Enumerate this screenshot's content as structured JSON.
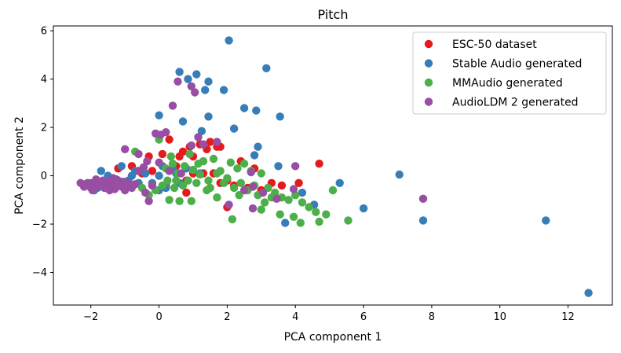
{
  "chart_data": {
    "type": "scatter",
    "title": "Pitch",
    "xlabel": "PCA component 1",
    "ylabel": "PCA component 2",
    "xlim": [
      -3.1,
      13.3
    ],
    "ylim": [
      -5.35,
      6.2
    ],
    "xticks": [
      -2,
      0,
      2,
      4,
      6,
      8,
      10,
      12
    ],
    "yticks": [
      -4,
      -2,
      0,
      2,
      4,
      6
    ],
    "xtick_labels": [
      "−2",
      "0",
      "2",
      "4",
      "6",
      "8",
      "10",
      "12"
    ],
    "ytick_labels": [
      "−4",
      "−2",
      "0",
      "2",
      "4",
      "6"
    ],
    "legend_position": "top-right",
    "series": [
      {
        "name": "ESC-50 dataset",
        "color": "#e41a1c",
        "points": [
          [
            -1.2,
            0.3
          ],
          [
            -0.8,
            0.4
          ],
          [
            -0.6,
            0.2
          ],
          [
            -0.3,
            0.8
          ],
          [
            -0.2,
            0.2
          ],
          [
            0.1,
            0.9
          ],
          [
            0.3,
            1.5
          ],
          [
            0.6,
            0.8
          ],
          [
            0.7,
            1.0
          ],
          [
            0.9,
            1.2
          ],
          [
            1.0,
            0.8
          ],
          [
            1.2,
            1.3
          ],
          [
            1.4,
            1.1
          ],
          [
            1.5,
            1.4
          ],
          [
            1.7,
            1.2
          ],
          [
            1.8,
            1.2
          ],
          [
            0.5,
            0.4
          ],
          [
            0.8,
            -0.2
          ],
          [
            1.0,
            0.1
          ],
          [
            1.3,
            0.1
          ],
          [
            1.6,
            0.1
          ],
          [
            1.8,
            -0.3
          ],
          [
            2.0,
            -0.2
          ],
          [
            2.2,
            -0.4
          ],
          [
            2.4,
            0.6
          ],
          [
            2.6,
            -0.5
          ],
          [
            2.8,
            0.3
          ],
          [
            3.0,
            -0.6
          ],
          [
            3.3,
            -0.3
          ],
          [
            3.6,
            -0.4
          ],
          [
            4.1,
            -0.3
          ],
          [
            4.7,
            0.5
          ],
          [
            2.0,
            -1.3
          ],
          [
            0.8,
            -0.7
          ],
          [
            0.2,
            -0.4
          ],
          [
            -0.5,
            0.1
          ]
        ]
      },
      {
        "name": "Stable Audio generated",
        "color": "#377eb8",
        "points": [
          [
            2.05,
            5.6
          ],
          [
            3.15,
            4.45
          ],
          [
            0.6,
            4.3
          ],
          [
            1.1,
            4.2
          ],
          [
            0.85,
            4.0
          ],
          [
            1.45,
            3.9
          ],
          [
            1.35,
            3.55
          ],
          [
            1.9,
            3.55
          ],
          [
            2.5,
            2.8
          ],
          [
            2.85,
            2.7
          ],
          [
            0.0,
            2.5
          ],
          [
            0.7,
            2.25
          ],
          [
            3.55,
            2.45
          ],
          [
            1.45,
            2.45
          ],
          [
            2.2,
            1.95
          ],
          [
            1.25,
            1.85
          ],
          [
            2.9,
            1.2
          ],
          [
            2.8,
            0.85
          ],
          [
            3.5,
            0.4
          ],
          [
            5.3,
            -0.3
          ],
          [
            7.05,
            0.05
          ],
          [
            4.2,
            -0.7
          ],
          [
            4.55,
            -1.2
          ],
          [
            6.0,
            -1.35
          ],
          [
            7.75,
            -1.85
          ],
          [
            3.7,
            -1.95
          ],
          [
            11.35,
            -1.85
          ],
          [
            12.6,
            -4.85
          ],
          [
            -2.2,
            -0.4
          ],
          [
            -2.0,
            -0.3
          ],
          [
            -1.8,
            -0.5
          ],
          [
            -1.6,
            -0.4
          ],
          [
            -1.4,
            -0.3
          ],
          [
            -1.2,
            -0.2
          ],
          [
            -1.0,
            -0.4
          ],
          [
            -0.8,
            0.0
          ],
          [
            -0.6,
            -0.3
          ],
          [
            -0.4,
            0.1
          ],
          [
            -0.2,
            -0.3
          ],
          [
            0.0,
            0.0
          ],
          [
            0.2,
            -0.5
          ],
          [
            0.4,
            0.3
          ],
          [
            0.0,
            -0.6
          ],
          [
            -1.5,
            0.0
          ],
          [
            -1.7,
            0.2
          ],
          [
            -1.1,
            0.4
          ],
          [
            -0.7,
            0.2
          ],
          [
            0.5,
            0.1
          ],
          [
            0.8,
            0.3
          ],
          [
            1.2,
            0.1
          ],
          [
            -1.9,
            -0.6
          ],
          [
            -1.3,
            -0.5
          ],
          [
            -0.9,
            -0.2
          ],
          [
            0.1,
            0.4
          ],
          [
            0.6,
            -0.3
          ]
        ]
      },
      {
        "name": "MMAudio generated",
        "color": "#4daf4a",
        "points": [
          [
            -0.7,
            1.0
          ],
          [
            0.0,
            1.5
          ],
          [
            0.35,
            0.8
          ],
          [
            0.9,
            0.9
          ],
          [
            1.3,
            0.6
          ],
          [
            1.6,
            0.7
          ],
          [
            2.1,
            0.55
          ],
          [
            2.5,
            0.5
          ],
          [
            2.3,
            0.3
          ],
          [
            2.7,
            0.2
          ],
          [
            3.0,
            0.1
          ],
          [
            0.2,
            0.3
          ],
          [
            0.5,
            -0.2
          ],
          [
            0.7,
            -0.4
          ],
          [
            1.1,
            -0.3
          ],
          [
            1.5,
            -0.5
          ],
          [
            1.9,
            -0.3
          ],
          [
            2.2,
            -0.5
          ],
          [
            2.6,
            -0.6
          ],
          [
            2.9,
            -0.8
          ],
          [
            3.2,
            -0.5
          ],
          [
            3.4,
            -0.7
          ],
          [
            3.6,
            -0.9
          ],
          [
            3.8,
            -1.0
          ],
          [
            4.0,
            -0.8
          ],
          [
            4.2,
            -1.1
          ],
          [
            4.4,
            -1.3
          ],
          [
            4.6,
            -1.5
          ],
          [
            4.9,
            -1.6
          ],
          [
            5.1,
            -0.6
          ],
          [
            5.55,
            -1.85
          ],
          [
            4.7,
            -1.9
          ],
          [
            4.15,
            -1.95
          ],
          [
            3.95,
            -1.7
          ],
          [
            3.55,
            -1.6
          ],
          [
            3.0,
            -1.4
          ],
          [
            2.15,
            -1.8
          ],
          [
            1.7,
            -0.9
          ],
          [
            1.4,
            -0.6
          ],
          [
            0.95,
            -1.05
          ],
          [
            0.6,
            -1.05
          ],
          [
            0.3,
            -1.0
          ],
          [
            0.1,
            -0.4
          ],
          [
            -0.1,
            -0.6
          ],
          [
            -0.3,
            -0.8
          ],
          [
            -0.5,
            -0.5
          ],
          [
            0.45,
            -0.5
          ],
          [
            0.75,
            0.4
          ],
          [
            1.0,
            0.25
          ],
          [
            1.2,
            0.05
          ],
          [
            1.45,
            -0.2
          ],
          [
            1.7,
            0.1
          ],
          [
            2.0,
            -0.1
          ],
          [
            2.4,
            -0.3
          ],
          [
            2.8,
            -0.4
          ],
          [
            3.1,
            -1.1
          ],
          [
            0.85,
            -0.2
          ],
          [
            0.4,
            0.5
          ],
          [
            1.8,
            0.2
          ],
          [
            2.35,
            -0.8
          ],
          [
            3.3,
            -0.9
          ],
          [
            0.55,
            0.1
          ],
          [
            1.15,
            0.5
          ],
          [
            0.25,
            -0.2
          ]
        ]
      },
      {
        "name": "AudioLDM 2 generated",
        "color": "#984ea3",
        "points": [
          [
            0.55,
            3.9
          ],
          [
            0.95,
            3.7
          ],
          [
            1.05,
            3.45
          ],
          [
            0.4,
            2.9
          ],
          [
            0.2,
            1.8
          ],
          [
            -0.1,
            1.75
          ],
          [
            -1.0,
            1.1
          ],
          [
            -0.6,
            0.9
          ],
          [
            0.05,
            1.7
          ],
          [
            1.15,
            1.6
          ],
          [
            1.3,
            1.3
          ],
          [
            1.7,
            1.4
          ],
          [
            0.95,
            1.25
          ],
          [
            -0.35,
            0.6
          ],
          [
            -0.6,
            0.2
          ],
          [
            -0.2,
            -0.4
          ],
          [
            -0.4,
            -0.7
          ],
          [
            -0.3,
            -1.05
          ],
          [
            2.05,
            -1.2
          ],
          [
            2.5,
            -0.6
          ],
          [
            2.75,
            -0.45
          ],
          [
            3.05,
            -0.7
          ],
          [
            3.45,
            -0.95
          ],
          [
            3.95,
            -0.55
          ],
          [
            4.0,
            0.4
          ],
          [
            2.7,
            0.15
          ],
          [
            7.75,
            -0.95
          ],
          [
            2.75,
            -1.35
          ],
          [
            0.0,
            0.55
          ],
          [
            0.3,
            0.2
          ],
          [
            -2.3,
            -0.3
          ],
          [
            -2.2,
            -0.45
          ],
          [
            -2.1,
            -0.3
          ],
          [
            -2.0,
            -0.5
          ],
          [
            -1.9,
            -0.3
          ],
          [
            -1.8,
            -0.45
          ],
          [
            -1.7,
            -0.35
          ],
          [
            -1.6,
            -0.5
          ],
          [
            -1.5,
            -0.25
          ],
          [
            -1.4,
            -0.4
          ],
          [
            -1.3,
            -0.55
          ],
          [
            -1.2,
            -0.3
          ],
          [
            -1.1,
            -0.45
          ],
          [
            -1.0,
            -0.6
          ],
          [
            -0.9,
            -0.3
          ],
          [
            -0.8,
            -0.5
          ],
          [
            -1.25,
            -0.15
          ],
          [
            -1.45,
            -0.6
          ],
          [
            -1.95,
            -0.6
          ],
          [
            -1.65,
            -0.2
          ],
          [
            -1.05,
            -0.25
          ],
          [
            -0.7,
            -0.35
          ],
          [
            -1.35,
            -0.1
          ],
          [
            -1.85,
            -0.15
          ],
          [
            0.65,
            0.1
          ],
          [
            -0.45,
            0.35
          ]
        ]
      }
    ]
  }
}
